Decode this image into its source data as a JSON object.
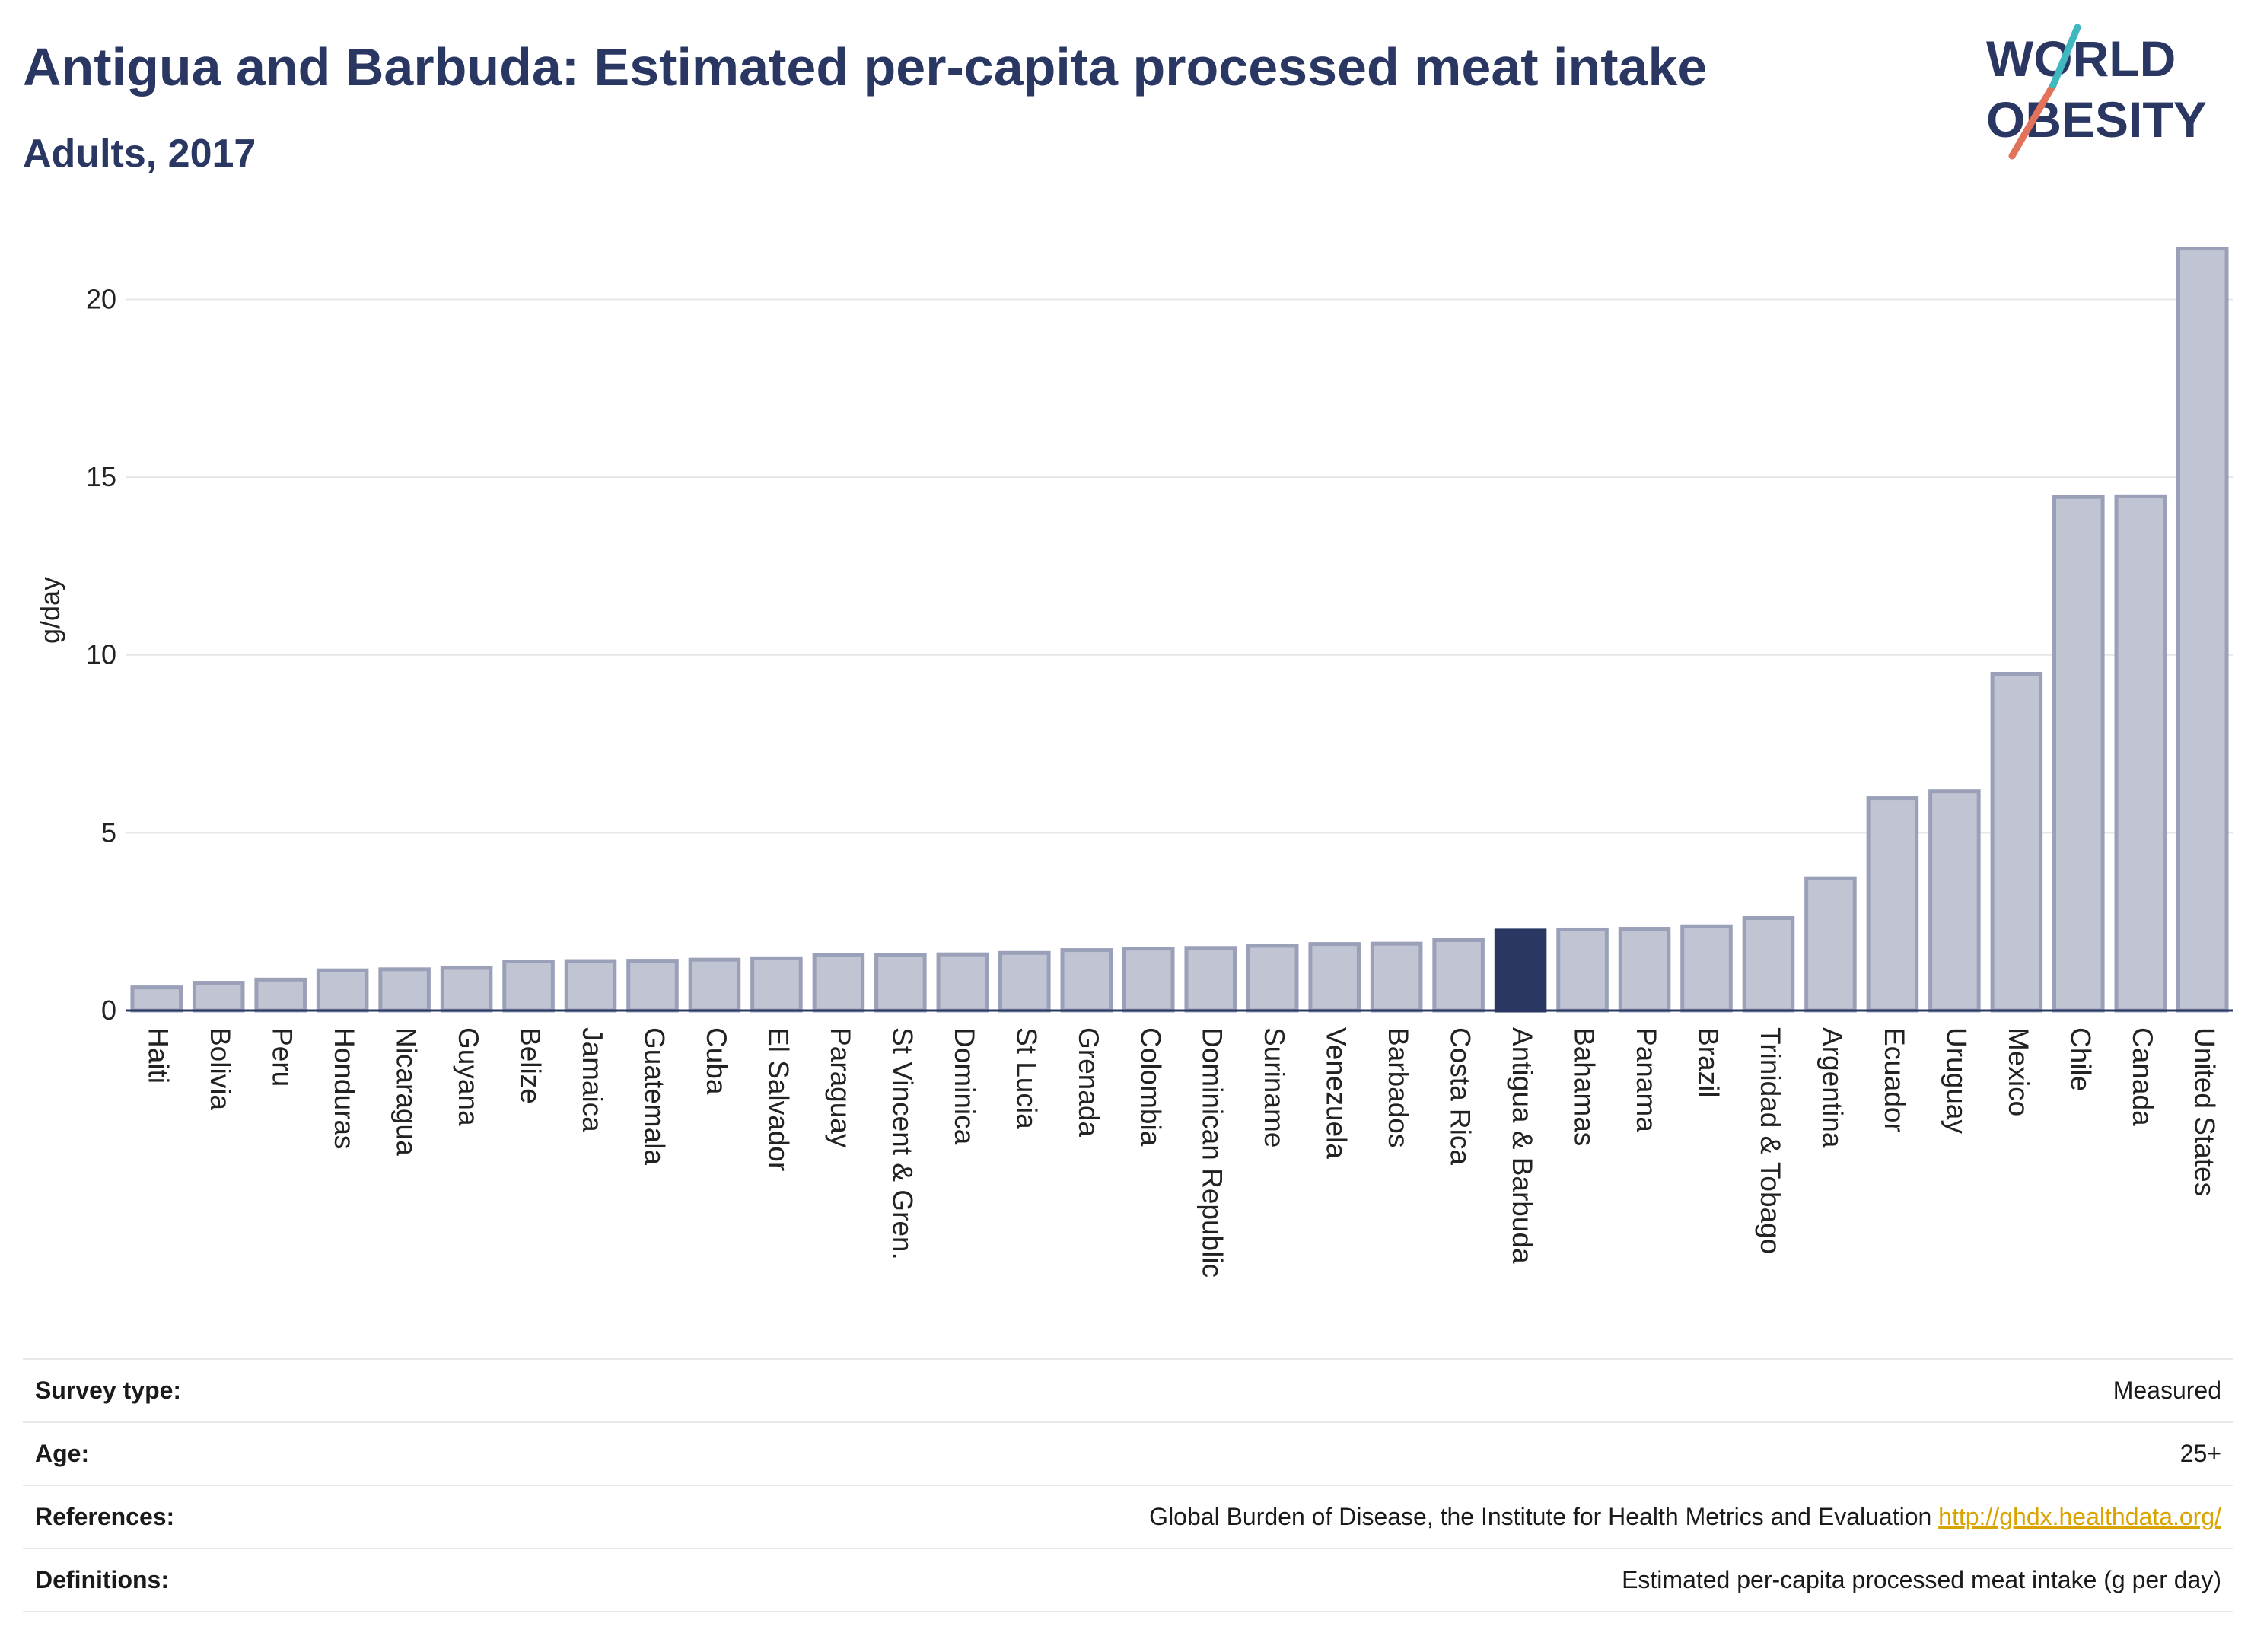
{
  "header": {
    "title": "Antigua and Barbuda: Estimated per-capita processed meat intake",
    "subtitle": "Adults, 2017"
  },
  "logo": {
    "line1": "WORLD",
    "line2": "OBESITY"
  },
  "chart_data": {
    "type": "bar",
    "ylabel": "g/day",
    "ylim": [
      0,
      22
    ],
    "yticks": [
      0,
      5,
      10,
      15,
      20
    ],
    "grid": true,
    "highlight": "Antigua & Barbuda",
    "colors": {
      "bar": "#c1c4d2",
      "bar_border": "#9aa0b8",
      "highlight": "#2a3763"
    },
    "categories": [
      "Haiti",
      "Bolivia",
      "Peru",
      "Honduras",
      "Nicaragua",
      "Guyana",
      "Belize",
      "Jamaica",
      "Guatemala",
      "Cuba",
      "El Salvador",
      "Paraguay",
      "St Vincent & Gren.",
      "Dominica",
      "St Lucia",
      "Grenada",
      "Colombia",
      "Dominican Republic",
      "Suriname",
      "Venezuela",
      "Barbados",
      "Costa Rica",
      "Antigua & Barbuda",
      "Bahamas",
      "Panama",
      "Brazil",
      "Trinidad & Tobago",
      "Argentina",
      "Ecuador",
      "Uruguay",
      "Mexico",
      "Chile",
      "Canada",
      "United States"
    ],
    "values": [
      0.65,
      0.78,
      0.87,
      1.13,
      1.16,
      1.2,
      1.38,
      1.39,
      1.4,
      1.43,
      1.47,
      1.56,
      1.57,
      1.58,
      1.62,
      1.7,
      1.74,
      1.76,
      1.82,
      1.87,
      1.88,
      1.98,
      2.25,
      2.28,
      2.3,
      2.37,
      2.6,
      3.72,
      5.98,
      6.17,
      9.47,
      14.44,
      14.46,
      21.43
    ]
  },
  "info": {
    "survey_type": {
      "label": "Survey type:",
      "value": "Measured"
    },
    "age": {
      "label": "Age:",
      "value": "25+"
    },
    "references": {
      "label": "References:",
      "value": "Global Burden of Disease, the Institute for Health Metrics and Evaluation",
      "link": "http://ghdx.healthdata.org/"
    },
    "definitions": {
      "label": "Definitions:",
      "value": "Estimated per-capita processed meat intake (g per day)"
    }
  }
}
